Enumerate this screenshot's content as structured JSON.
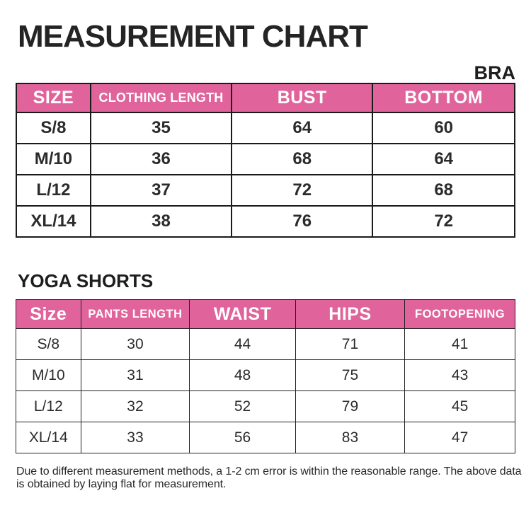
{
  "title": "MEASUREMENT CHART",
  "colors": {
    "header_pink": "#E0649B",
    "border_dark": "#1A1A1A",
    "text_dark": "#262626"
  },
  "bra": {
    "section_label": "BRA",
    "table": {
      "headers": [
        "SIZE",
        "CLOTHING LENGTH",
        "BUST",
        "BOTTOM"
      ],
      "rows": [
        [
          "S/8",
          "35",
          "64",
          "60"
        ],
        [
          "M/10",
          "36",
          "68",
          "64"
        ],
        [
          "L/12",
          "37",
          "72",
          "68"
        ],
        [
          "XL/14",
          "38",
          "76",
          "72"
        ]
      ]
    }
  },
  "yoga_shorts": {
    "section_label": "YOGA SHORTS",
    "table": {
      "headers": [
        "Size",
        "PANTS LENGTH",
        "WAIST",
        "HIPS",
        "FOOTOPENING"
      ],
      "rows": [
        [
          "S/8",
          "30",
          "44",
          "71",
          "41"
        ],
        [
          "M/10",
          "31",
          "48",
          "75",
          "43"
        ],
        [
          "L/12",
          "32",
          "52",
          "79",
          "45"
        ],
        [
          "XL/14",
          "33",
          "56",
          "83",
          "47"
        ]
      ]
    }
  },
  "footer_note": "Due to different measurement methods, a 1-2 cm error is within the reasonable range. The above data is obtained by laying flat for measurement."
}
